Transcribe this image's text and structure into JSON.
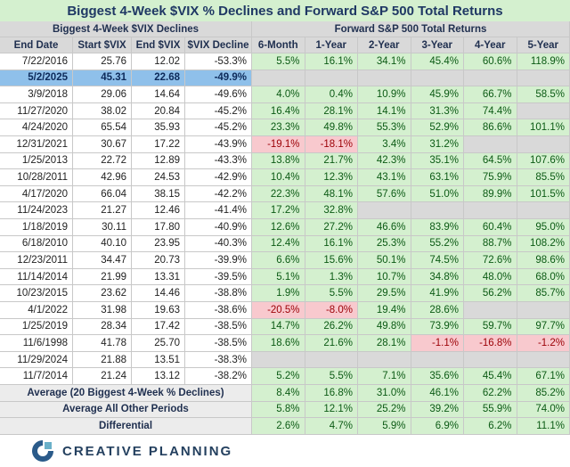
{
  "title": "Biggest 4-Week $VIX % Declines and Forward S&P 500 Total Returns",
  "left_header": "Biggest 4-Week $VIX Declines",
  "right_header": "Forward S&P 500 Total Returns",
  "columns": [
    "End Date",
    "Start $VIX",
    "End $VIX",
    "$VIX Decline",
    "6-Month",
    "1-Year",
    "2-Year",
    "3-Year",
    "4-Year",
    "5-Year"
  ],
  "rows": [
    [
      "7/22/2016",
      "25.76",
      "12.02",
      "-53.3%",
      "5.5%",
      "16.1%",
      "34.1%",
      "45.4%",
      "60.6%",
      "118.9%"
    ],
    [
      "5/2/2025",
      "45.31",
      "22.68",
      "-49.9%",
      null,
      null,
      null,
      null,
      null,
      null
    ],
    [
      "3/9/2018",
      "29.06",
      "14.64",
      "-49.6%",
      "4.0%",
      "0.4%",
      "10.9%",
      "45.9%",
      "66.7%",
      "58.5%"
    ],
    [
      "11/27/2020",
      "38.02",
      "20.84",
      "-45.2%",
      "16.4%",
      "28.1%",
      "14.1%",
      "31.3%",
      "74.4%",
      null
    ],
    [
      "4/24/2020",
      "65.54",
      "35.93",
      "-45.2%",
      "23.3%",
      "49.8%",
      "55.3%",
      "52.9%",
      "86.6%",
      "101.1%"
    ],
    [
      "12/31/2021",
      "30.67",
      "17.22",
      "-43.9%",
      "-19.1%",
      "-18.1%",
      "3.4%",
      "31.2%",
      null,
      null
    ],
    [
      "1/25/2013",
      "22.72",
      "12.89",
      "-43.3%",
      "13.8%",
      "21.7%",
      "42.3%",
      "35.1%",
      "64.5%",
      "107.6%"
    ],
    [
      "10/28/2011",
      "42.96",
      "24.53",
      "-42.9%",
      "10.4%",
      "12.3%",
      "43.1%",
      "63.1%",
      "75.9%",
      "85.5%"
    ],
    [
      "4/17/2020",
      "66.04",
      "38.15",
      "-42.2%",
      "22.3%",
      "48.1%",
      "57.6%",
      "51.0%",
      "89.9%",
      "101.5%"
    ],
    [
      "11/24/2023",
      "21.27",
      "12.46",
      "-41.4%",
      "17.2%",
      "32.8%",
      null,
      null,
      null,
      null
    ],
    [
      "1/18/2019",
      "30.11",
      "17.80",
      "-40.9%",
      "12.6%",
      "27.2%",
      "46.6%",
      "83.9%",
      "60.4%",
      "95.0%"
    ],
    [
      "6/18/2010",
      "40.10",
      "23.95",
      "-40.3%",
      "12.4%",
      "16.1%",
      "25.3%",
      "55.2%",
      "88.7%",
      "108.2%"
    ],
    [
      "12/23/2011",
      "34.47",
      "20.73",
      "-39.9%",
      "6.6%",
      "15.6%",
      "50.1%",
      "74.5%",
      "72.6%",
      "98.6%"
    ],
    [
      "11/14/2014",
      "21.99",
      "13.31",
      "-39.5%",
      "5.1%",
      "1.3%",
      "10.7%",
      "34.8%",
      "48.0%",
      "68.0%"
    ],
    [
      "10/23/2015",
      "23.62",
      "14.46",
      "-38.8%",
      "1.9%",
      "5.5%",
      "29.5%",
      "41.9%",
      "56.2%",
      "85.7%"
    ],
    [
      "4/1/2022",
      "31.98",
      "19.63",
      "-38.6%",
      "-20.5%",
      "-8.0%",
      "19.4%",
      "28.6%",
      null,
      null
    ],
    [
      "1/25/2019",
      "28.34",
      "17.42",
      "-38.5%",
      "14.7%",
      "26.2%",
      "49.8%",
      "73.9%",
      "59.7%",
      "97.7%"
    ],
    [
      "11/6/1998",
      "41.78",
      "25.70",
      "-38.5%",
      "18.6%",
      "21.6%",
      "28.1%",
      "-1.1%",
      "-16.8%",
      "-1.2%"
    ],
    [
      "11/29/2024",
      "21.88",
      "13.51",
      "-38.3%",
      null,
      null,
      null,
      null,
      null,
      null
    ],
    [
      "11/7/2014",
      "21.24",
      "13.12",
      "-38.2%",
      "5.2%",
      "5.5%",
      "7.1%",
      "35.6%",
      "45.4%",
      "67.1%"
    ]
  ],
  "summary": [
    {
      "label": "Average (20 Biggest 4-Week % Declines)",
      "values": [
        "8.4%",
        "16.8%",
        "31.0%",
        "46.1%",
        "62.2%",
        "85.2%"
      ]
    },
    {
      "label": "Average All Other Periods",
      "values": [
        "5.8%",
        "12.1%",
        "25.2%",
        "39.2%",
        "55.9%",
        "74.0%"
      ]
    },
    {
      "label": "Differential",
      "values": [
        "2.6%",
        "4.7%",
        "5.9%",
        "6.9%",
        "6.2%",
        "11.1%"
      ]
    }
  ],
  "footer": {
    "brand": "CREATIVE PLANNING"
  }
}
